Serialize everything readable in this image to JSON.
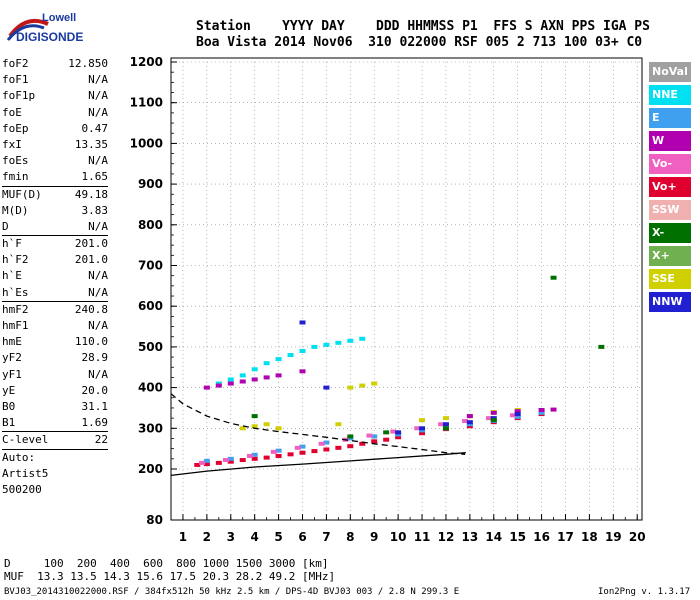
{
  "logo": {
    "line1": "Lowell",
    "line2": "DIGISONDE"
  },
  "header": {
    "line1": "Station    YYYY DAY    DDD HHMMSS P1  FFS S AXN PPS IGA PS",
    "line2": "Boa Vista 2014 Nov06  310 022000 RSF 005 2 713 100 03+ C0"
  },
  "params": {
    "group1": [
      {
        "k": "foF2",
        "v": "12.850"
      },
      {
        "k": "foF1",
        "v": "N/A"
      },
      {
        "k": "foF1p",
        "v": "N/A"
      },
      {
        "k": "foE",
        "v": "N/A"
      },
      {
        "k": "foEp",
        "v": "0.47"
      },
      {
        "k": "fxI",
        "v": "13.35"
      },
      {
        "k": "foEs",
        "v": "N/A"
      },
      {
        "k": "fmin",
        "v": "1.65"
      }
    ],
    "group2": [
      {
        "k": "MUF(D)",
        "v": "49.18"
      },
      {
        "k": "M(D)",
        "v": "3.83"
      },
      {
        "k": "D",
        "v": "N/A"
      }
    ],
    "group3": [
      {
        "k": "h`F",
        "v": "201.0"
      },
      {
        "k": "h`F2",
        "v": "201.0"
      },
      {
        "k": "h`E",
        "v": "N/A"
      },
      {
        "k": "h`Es",
        "v": "N/A"
      }
    ],
    "group4": [
      {
        "k": "hmF2",
        "v": "240.8"
      },
      {
        "k": "hmF1",
        "v": "N/A"
      },
      {
        "k": "hmE",
        "v": "110.0"
      },
      {
        "k": "yF2",
        "v": "28.9"
      },
      {
        "k": "yF1",
        "v": "N/A"
      },
      {
        "k": "yE",
        "v": "20.0"
      },
      {
        "k": "B0",
        "v": "31.1"
      },
      {
        "k": "B1",
        "v": "1.69"
      }
    ],
    "group5": [
      {
        "k": "C-level",
        "v": "22"
      }
    ],
    "group6": [
      "Auto:",
      "Artist5",
      "500200"
    ]
  },
  "legend": [
    {
      "label": "NoVal",
      "color": "#a0a0a0"
    },
    {
      "label": "NNE",
      "color": "#00e0f0"
    },
    {
      "label": "E",
      "color": "#40a0f0"
    },
    {
      "label": "W",
      "color": "#b000b0"
    },
    {
      "label": "Vo-",
      "color": "#f060c0"
    },
    {
      "label": "Vo+",
      "color": "#e00030"
    },
    {
      "label": "SSW",
      "color": "#f0b0b0"
    },
    {
      "label": "X-",
      "color": "#007000"
    },
    {
      "label": "X+",
      "color": "#70b050"
    },
    {
      "label": "SSE",
      "color": "#d0d000"
    },
    {
      "label": "NNW",
      "color": "#2020d0"
    }
  ],
  "bottom": {
    "line1": "D     100  200  400  600  800 1000 1500 3000 [km]",
    "line2": "MUF  13.3 13.5 14.3 15.6 17.5 20.3 28.2 49.2 [MHz]",
    "line3": "BVJ03_2014310022000.RSF / 384fx512h 50 kHz 2.5 km / DPS-4D BVJ03 003 / 2.8 N 299.3 E",
    "line4": "Ion2Png v. 1.3.17"
  },
  "chart_data": {
    "type": "scatter",
    "title": "",
    "xlabel": "",
    "ylabel": "",
    "xlim": [
      0.5,
      20.2
    ],
    "ylim": [
      80,
      1220
    ],
    "x_ticks": [
      "1",
      "2",
      "3",
      "4",
      "5",
      "6",
      "7",
      "8",
      "9",
      "10",
      "11",
      "12",
      "13",
      "14",
      "15",
      "16",
      "17",
      "18",
      "19",
      "20"
    ],
    "y_ticks": [
      "80",
      "200",
      "300",
      "400",
      "500",
      "600",
      "700",
      "800",
      "900",
      "1000",
      "1100",
      "1200"
    ],
    "grid": true,
    "series": [
      {
        "color": "#e00030",
        "points": [
          [
            1.6,
            210
          ],
          [
            2.0,
            212
          ],
          [
            2.5,
            215
          ],
          [
            3.0,
            218
          ],
          [
            3.5,
            222
          ],
          [
            4.0,
            225
          ],
          [
            4.5,
            228
          ],
          [
            5.0,
            232
          ],
          [
            5.5,
            236
          ],
          [
            6.0,
            240
          ],
          [
            6.5,
            244
          ],
          [
            7.0,
            248
          ],
          [
            7.5,
            252
          ],
          [
            8.0,
            256
          ],
          [
            8.5,
            262
          ],
          [
            9.0,
            268
          ],
          [
            9.5,
            272
          ],
          [
            10.0,
            278
          ],
          [
            11.0,
            288
          ],
          [
            12.0,
            298
          ],
          [
            13.0,
            305
          ],
          [
            14.0,
            315
          ],
          [
            15.0,
            325
          ],
          [
            16.0,
            335
          ]
        ]
      },
      {
        "color": "#40a0f0",
        "points": [
          [
            2.0,
            220
          ],
          [
            3.0,
            225
          ],
          [
            4.0,
            235
          ],
          [
            5.0,
            245
          ],
          [
            6.0,
            255
          ],
          [
            7.0,
            265
          ],
          [
            8.0,
            275
          ],
          [
            9.0,
            280
          ],
          [
            10.0,
            285
          ],
          [
            11.0,
            295
          ],
          [
            12.0,
            300
          ],
          [
            13.0,
            310
          ],
          [
            14.0,
            318
          ],
          [
            15.0,
            328
          ],
          [
            16.0,
            338
          ]
        ]
      },
      {
        "color": "#f060c0",
        "points": [
          [
            1.8,
            215
          ],
          [
            2.8,
            222
          ],
          [
            3.8,
            232
          ],
          [
            4.8,
            242
          ],
          [
            5.8,
            252
          ],
          [
            6.8,
            262
          ],
          [
            7.8,
            272
          ],
          [
            8.8,
            282
          ],
          [
            9.8,
            292
          ],
          [
            10.8,
            300
          ],
          [
            11.8,
            310
          ],
          [
            12.8,
            318
          ],
          [
            13.8,
            325
          ],
          [
            14.8,
            332
          ]
        ]
      },
      {
        "color": "#d0d000",
        "points": [
          [
            3.5,
            300
          ],
          [
            4.0,
            305
          ],
          [
            4.5,
            310
          ],
          [
            5.0,
            300
          ],
          [
            7.5,
            310
          ],
          [
            8.0,
            400
          ],
          [
            8.5,
            405
          ],
          [
            9.0,
            410
          ],
          [
            11.0,
            320
          ],
          [
            12.0,
            325
          ],
          [
            13.0,
            330
          ],
          [
            14.0,
            340
          ],
          [
            15.0,
            345
          ]
        ]
      },
      {
        "color": "#00e0f0",
        "points": [
          [
            2.5,
            410
          ],
          [
            3.0,
            420
          ],
          [
            3.5,
            430
          ],
          [
            4.0,
            445
          ],
          [
            4.5,
            460
          ],
          [
            5.0,
            470
          ],
          [
            5.5,
            480
          ],
          [
            6.0,
            490
          ],
          [
            6.5,
            500
          ],
          [
            7.0,
            505
          ],
          [
            7.5,
            510
          ],
          [
            8.0,
            515
          ],
          [
            8.5,
            520
          ]
        ]
      },
      {
        "color": "#b000b0",
        "points": [
          [
            2.0,
            400
          ],
          [
            2.5,
            405
          ],
          [
            3.0,
            410
          ],
          [
            3.5,
            415
          ],
          [
            4.0,
            420
          ],
          [
            4.5,
            425
          ],
          [
            5.0,
            430
          ],
          [
            6.0,
            440
          ],
          [
            13.0,
            330
          ],
          [
            14.0,
            338
          ],
          [
            15.0,
            342
          ],
          [
            16.0,
            345
          ],
          [
            16.5,
            346
          ]
        ]
      },
      {
        "color": "#2020d0",
        "points": [
          [
            6.0,
            560
          ],
          [
            7.0,
            400
          ],
          [
            10.0,
            290
          ],
          [
            11.0,
            300
          ],
          [
            12.0,
            310
          ],
          [
            13.0,
            315
          ],
          [
            14.0,
            325
          ],
          [
            15.0,
            335
          ]
        ]
      },
      {
        "color": "#007000",
        "points": [
          [
            4.0,
            330
          ],
          [
            8.0,
            280
          ],
          [
            9.5,
            290
          ],
          [
            12.0,
            300
          ],
          [
            14.0,
            320
          ],
          [
            16.5,
            670
          ],
          [
            18.5,
            500
          ]
        ]
      }
    ],
    "curves": [
      {
        "style": "solid",
        "points": [
          [
            0.5,
            185
          ],
          [
            2,
            195
          ],
          [
            4,
            205
          ],
          [
            6,
            212
          ],
          [
            8,
            220
          ],
          [
            10,
            228
          ],
          [
            12,
            236
          ],
          [
            12.8,
            240
          ],
          [
            12.8,
            238
          ]
        ]
      },
      {
        "style": "dashed",
        "points": [
          [
            0.5,
            385
          ],
          [
            1,
            360
          ],
          [
            2,
            330
          ],
          [
            3,
            312
          ],
          [
            4,
            300
          ],
          [
            5,
            292
          ],
          [
            6,
            285
          ],
          [
            7,
            278
          ],
          [
            8,
            270
          ],
          [
            9,
            262
          ],
          [
            10,
            255
          ],
          [
            11,
            248
          ],
          [
            12,
            240
          ],
          [
            12.8,
            236
          ]
        ]
      }
    ]
  }
}
